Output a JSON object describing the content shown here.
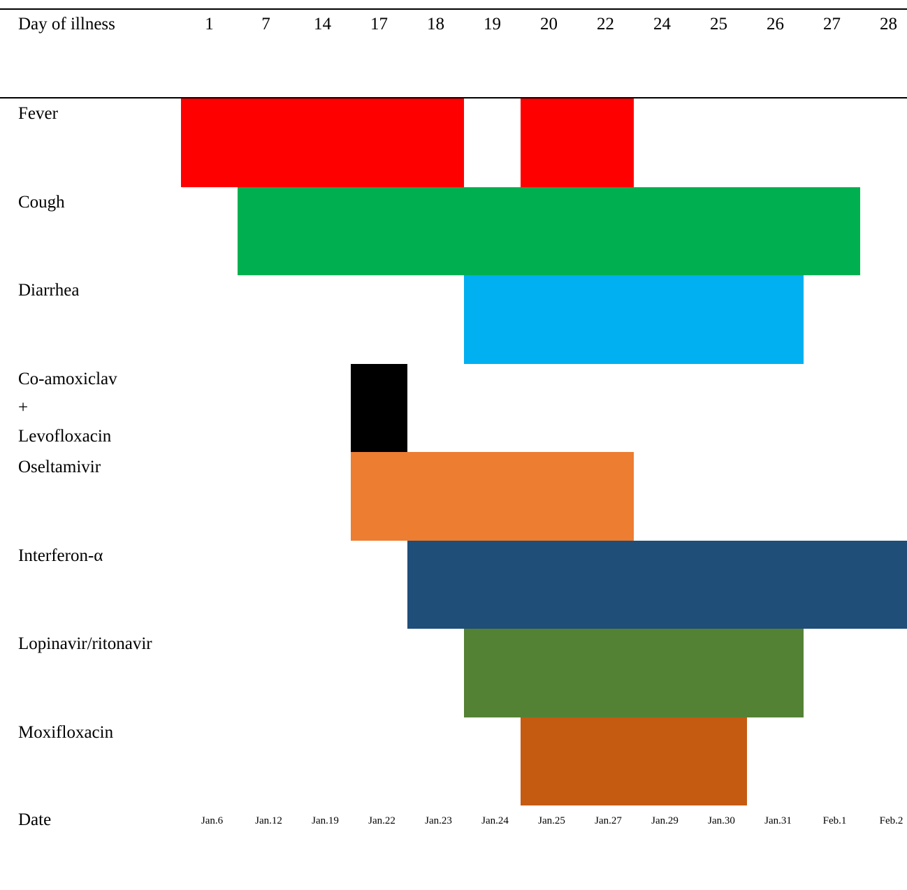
{
  "header_label": "Day of illness",
  "date_label": "Date",
  "chart_data": {
    "type": "gantt",
    "columns": [
      {
        "day": "1",
        "date": "Jan.6"
      },
      {
        "day": "7",
        "date": "Jan.12"
      },
      {
        "day": "14",
        "date": "Jan.19"
      },
      {
        "day": "17",
        "date": "Jan.22"
      },
      {
        "day": "18",
        "date": "Jan.23"
      },
      {
        "day": "19",
        "date": "Jan.24"
      },
      {
        "day": "20",
        "date": "Jan.25"
      },
      {
        "day": "22",
        "date": "Jan.27"
      },
      {
        "day": "24",
        "date": "Jan.29"
      },
      {
        "day": "25",
        "date": "Jan.30"
      },
      {
        "day": "26",
        "date": "Jan.31"
      },
      {
        "day": "27",
        "date": "Feb.1"
      },
      {
        "day": "28",
        "date": "Feb.2"
      }
    ],
    "rows": [
      {
        "label_lines": [
          "Fever"
        ],
        "color": "#ff0000",
        "spans": [
          {
            "start": "Jan.6",
            "end": "Jan.23"
          },
          {
            "start": "Jan.25",
            "end": "Jan.27"
          }
        ]
      },
      {
        "label_lines": [
          "Cough"
        ],
        "color": "#00b050",
        "spans": [
          {
            "start": "Jan.12",
            "end": "Feb.1"
          }
        ]
      },
      {
        "label_lines": [
          "Diarrhea"
        ],
        "color": "#00b0f0",
        "spans": [
          {
            "start": "Jan.24",
            "end": "Jan.31"
          }
        ]
      },
      {
        "label_lines": [
          "Co-amoxiclav",
          "+",
          "Levofloxacin"
        ],
        "color": "#000000",
        "spans": [
          {
            "start": "Jan.22",
            "end": "Jan.22"
          }
        ]
      },
      {
        "label_lines": [
          "Oseltamivir"
        ],
        "color": "#ed7d31",
        "spans": [
          {
            "start": "Jan.22",
            "end": "Jan.27"
          }
        ]
      },
      {
        "label_lines": [
          "Interferon-α"
        ],
        "color": "#1f4e79",
        "spans": [
          {
            "start": "Jan.23",
            "end": "Feb.2"
          }
        ]
      },
      {
        "label_lines": [
          "Lopinavir/ritonavir"
        ],
        "color": "#548235",
        "spans": [
          {
            "start": "Jan.24",
            "end": "Jan.31"
          }
        ]
      },
      {
        "label_lines": [
          "Moxifloxacin"
        ],
        "color": "#c55a11",
        "spans": [
          {
            "start": "Jan.25",
            "end": "Jan.30"
          }
        ]
      }
    ]
  }
}
